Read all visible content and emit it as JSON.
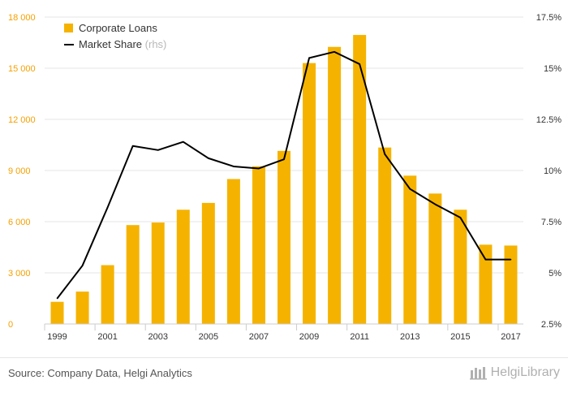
{
  "chart_data": {
    "type": "bar+line",
    "x": [
      "1999",
      "2000",
      "2001",
      "2002",
      "2003",
      "2004",
      "2005",
      "2006",
      "2007",
      "2008",
      "2009",
      "2010",
      "2011",
      "2012",
      "2013",
      "2014",
      "2015",
      "2016",
      "2017"
    ],
    "x_tick_labels": [
      "1999",
      "2001",
      "2003",
      "2005",
      "2007",
      "2009",
      "2011",
      "2013",
      "2015",
      "2017"
    ],
    "series": [
      {
        "name": "Corporate Loans",
        "kind": "bar",
        "axis": "left",
        "color": "#f5b300",
        "values": [
          1300,
          1900,
          3450,
          5800,
          5950,
          6700,
          7100,
          8500,
          9250,
          10150,
          15300,
          16250,
          16950,
          10350,
          8700,
          7650,
          6700,
          4650,
          4600
        ]
      },
      {
        "name": "Market Share",
        "name_suffix": "(rhs)",
        "kind": "line",
        "axis": "right",
        "color": "#000000",
        "values": [
          3.75,
          5.35,
          8.2,
          11.2,
          11.0,
          11.4,
          10.6,
          10.2,
          10.1,
          10.55,
          15.5,
          15.8,
          15.2,
          10.8,
          9.1,
          8.35,
          7.7,
          5.65,
          5.65
        ]
      }
    ],
    "y_left": {
      "lim": [
        0,
        18000
      ],
      "ticks": [
        0,
        3000,
        6000,
        9000,
        12000,
        15000,
        18000
      ],
      "tick_labels": [
        "0",
        "3 000",
        "6 000",
        "9 000",
        "12 000",
        "15 000",
        "18 000"
      ]
    },
    "y_right": {
      "lim": [
        2.5,
        17.5
      ],
      "ticks": [
        2.5,
        5,
        7.5,
        10,
        12.5,
        15,
        17.5
      ],
      "tick_labels": [
        "2.5%",
        "5%",
        "7.5%",
        "10%",
        "12.5%",
        "15%",
        "17.5%"
      ]
    },
    "grid": "horizontal",
    "legend_position": "top-left",
    "colors": {
      "axis_label": "#f5a000",
      "grid": "#e6e6e6",
      "tick_right": "#333333",
      "tick_x": "#333333"
    }
  },
  "footer": {
    "source": "Source: Company Data, Helgi Analytics",
    "brand": "HelgiLibrary"
  }
}
